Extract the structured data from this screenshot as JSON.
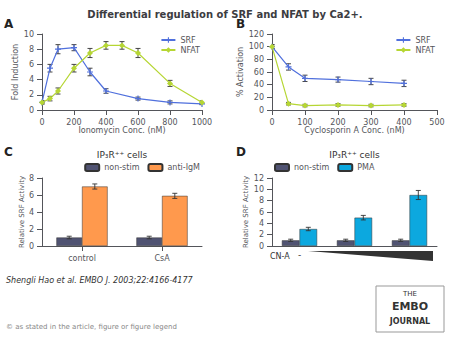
{
  "title": "Differential regulation of SRF and NFAT by Ca2+.",
  "annotations": [
    "Shengli Hao et al. EMBO J. 2003;22:4166-4177",
    "© as stated in the article, figure or figure legend",
    "THE",
    "EMBO",
    "JOURNAL"
  ],
  "chart_data": [
    {
      "type": "line",
      "annotations": [
        "A"
      ],
      "xlabel": "Ionomycin Conc. (nM)",
      "ylabel": "Fold Induction",
      "xlim": [
        0,
        1000
      ],
      "ylim": [
        0,
        10
      ],
      "xticks": [
        0,
        200,
        400,
        600,
        800,
        1000
      ],
      "yticks": [
        0,
        2,
        4,
        6,
        8,
        10
      ],
      "grid": false,
      "legend": "upper right",
      "series": [
        {
          "name": "SRF",
          "marker": "plus",
          "x": [
            0,
            50,
            100,
            200,
            300,
            400,
            600,
            800,
            1000
          ],
          "values": [
            1,
            5.5,
            8.0,
            8.2,
            5.0,
            2.5,
            1.5,
            1.0,
            0.8
          ],
          "errors": [
            0.2,
            0.5,
            0.6,
            0.4,
            0.5,
            0.3,
            0.2,
            0.2,
            0.1
          ]
        },
        {
          "name": "NFAT",
          "marker": "diamond",
          "x": [
            0,
            50,
            100,
            200,
            300,
            400,
            500,
            600,
            800,
            1000
          ],
          "values": [
            1,
            1.5,
            2.5,
            5.5,
            7.5,
            8.5,
            8.5,
            7.5,
            3.5,
            1.0
          ],
          "errors": [
            0.2,
            0.3,
            0.4,
            0.5,
            0.6,
            0.5,
            0.5,
            0.6,
            0.4,
            0.2
          ]
        }
      ]
    },
    {
      "type": "line",
      "annotations": [
        "B"
      ],
      "xlabel": "Cyclosporin A Conc. (nM)",
      "ylabel": "% Activation",
      "xlim": [
        0,
        500
      ],
      "ylim": [
        0,
        120
      ],
      "xticks": [
        0,
        100,
        200,
        300,
        400,
        500
      ],
      "yticks": [
        0,
        20,
        40,
        60,
        80,
        100,
        120
      ],
      "grid": false,
      "legend": "upper right",
      "series": [
        {
          "name": "SRF",
          "marker": "plus",
          "x": [
            0,
            50,
            100,
            200,
            300,
            400
          ],
          "values": [
            100,
            68,
            50,
            48,
            45,
            42
          ],
          "errors": [
            3,
            5,
            5,
            4,
            5,
            5
          ]
        },
        {
          "name": "NFAT",
          "marker": "diamond",
          "x": [
            0,
            50,
            100,
            200,
            300,
            400
          ],
          "values": [
            100,
            10,
            7,
            8,
            7,
            8
          ],
          "errors": [
            3,
            2,
            2,
            2,
            2,
            2
          ]
        }
      ]
    },
    {
      "type": "bar",
      "annotations": [
        "C"
      ],
      "title": "IP₃R⁺⁺ cells",
      "categories": [
        "control",
        "CsA"
      ],
      "ylabel": "Relative SRF Activity",
      "ylim": [
        0,
        8
      ],
      "yticks": [
        0,
        2,
        4,
        6,
        8
      ],
      "grid": false,
      "legend": "upper right",
      "series": [
        {
          "name": "non-stim",
          "values": [
            1.0,
            1.0
          ],
          "errors": [
            0.15,
            0.15
          ]
        },
        {
          "name": "anti-IgM",
          "values": [
            7.0,
            5.9
          ],
          "errors": [
            0.3,
            0.3
          ]
        }
      ]
    },
    {
      "type": "bar",
      "annotations": [
        "D",
        "-"
      ],
      "title": "IP₃R⁺⁺ cells",
      "categories": [
        null,
        null,
        null
      ],
      "xlabel": "CN-A",
      "ylabel": "Relative SRF Activity",
      "ylim": [
        0,
        12
      ],
      "yticks": [
        0,
        2,
        4,
        6,
        8,
        10,
        12
      ],
      "grid": false,
      "legend": "upper left",
      "tick_labels": "y",
      "series": [
        {
          "name": "non-stim",
          "values": [
            1.0,
            1.0,
            1.0
          ],
          "errors": [
            0.2,
            0.2,
            0.2
          ]
        },
        {
          "name": "PMA",
          "values": [
            3.0,
            5.0,
            9.0
          ],
          "errors": [
            0.3,
            0.4,
            0.8
          ]
        }
      ]
    }
  ]
}
